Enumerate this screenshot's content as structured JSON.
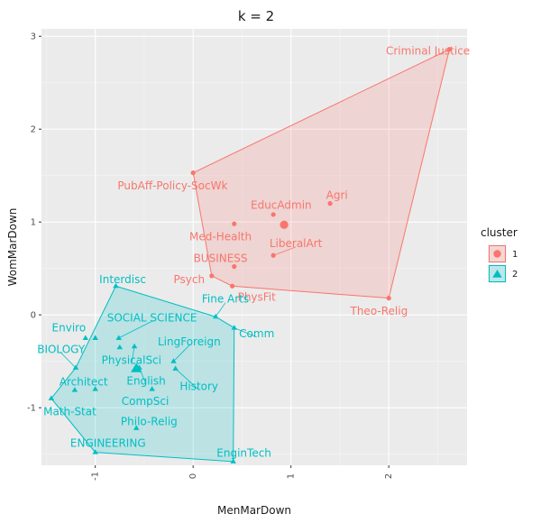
{
  "chart_data": {
    "type": "scatter",
    "title": "k = 2",
    "xlabel": "MenMarDown",
    "ylabel": "WomMarDown",
    "xlim": [
      -1.55,
      2.8
    ],
    "ylim": [
      -1.62,
      3.08
    ],
    "x_ticks": [
      -1,
      0,
      1,
      2
    ],
    "x_tick_labels": [
      "-1",
      "0",
      "1",
      "2"
    ],
    "y_ticks": [
      -1,
      0,
      1,
      2,
      3
    ],
    "y_tick_labels": [
      "-1",
      "0",
      "1",
      "2",
      "3"
    ],
    "grid": true,
    "legend": {
      "title": "cluster",
      "position": "right",
      "entries": [
        "1",
        "2"
      ]
    },
    "colors": {
      "1": "#f8766d",
      "2": "#00bfc4"
    },
    "series": [
      {
        "name": "1",
        "shape": "circle",
        "centroid": [
          0.93,
          0.97
        ],
        "hull": [
          "Criminal Justice",
          "Theo-Relig",
          "PhysFit",
          "Psych",
          "PubAff-Policy-SocWk"
        ],
        "points": [
          {
            "label": "Criminal Justice",
            "x": 2.62,
            "y": 2.86,
            "lx": 2.4,
            "ly": 2.84
          },
          {
            "label": "PubAff-Policy-SocWk",
            "x": 0.0,
            "y": 1.53,
            "lx": -0.21,
            "ly": 1.39
          },
          {
            "label": "Agri",
            "x": 1.4,
            "y": 1.2,
            "lx": 1.47,
            "ly": 1.29
          },
          {
            "label": "EducAdmin",
            "x": 0.82,
            "y": 1.08,
            "lx": 0.9,
            "ly": 1.18
          },
          {
            "label": "Med-Health",
            "x": 0.42,
            "y": 0.98,
            "lx": 0.28,
            "ly": 0.84
          },
          {
            "label": "LiberalArt",
            "x": 0.82,
            "y": 0.64,
            "lx": 1.05,
            "ly": 0.77,
            "line": true
          },
          {
            "label": "BUSINESS",
            "x": 0.42,
            "y": 0.52,
            "lx": 0.28,
            "ly": 0.61
          },
          {
            "label": "Psych",
            "x": 0.19,
            "y": 0.42,
            "lx": -0.04,
            "ly": 0.38
          },
          {
            "label": "PhysFit",
            "x": 0.4,
            "y": 0.31,
            "lx": 0.65,
            "ly": 0.19
          },
          {
            "label": "Theo-Relig",
            "x": 2.0,
            "y": 0.18,
            "lx": 1.9,
            "ly": 0.04
          }
        ]
      },
      {
        "name": "2",
        "shape": "triangle",
        "centroid": [
          -0.58,
          -0.58
        ],
        "hull": [
          "Interdisc",
          "Fine Arts",
          "Comm",
          "EnginTech",
          "ENGINEERING",
          "Math-Stat",
          "BIOLOGY"
        ],
        "points": [
          {
            "label": "Interdisc",
            "x": -0.79,
            "y": 0.31,
            "lx": -0.72,
            "ly": 0.38
          },
          {
            "label": "Fine Arts",
            "x": 0.23,
            "y": -0.02,
            "lx": 0.33,
            "ly": 0.17,
            "line": true
          },
          {
            "label": "SOCIAL SCIENCE",
            "x": -0.76,
            "y": -0.25,
            "lx": -0.42,
            "ly": -0.03,
            "line": true
          },
          {
            "label": "Enviro",
            "x": -1.0,
            "y": -0.25,
            "lx": -1.27,
            "ly": -0.14
          },
          {
            "label": "Comm",
            "x": 0.42,
            "y": -0.14,
            "lx": 0.65,
            "ly": -0.2,
            "line": true
          },
          {
            "label": "BIOLOGY",
            "x": -1.2,
            "y": -0.57,
            "lx": -1.35,
            "ly": -0.37,
            "line": true
          },
          {
            "label": "LingForeign",
            "x": -0.2,
            "y": -0.5,
            "lx": -0.04,
            "ly": -0.29,
            "line": true
          },
          {
            "label": "PhysicalSci",
            "x": -0.6,
            "y": -0.34,
            "lx": -0.63,
            "ly": -0.49,
            "line": true
          },
          {
            "label": "Architect",
            "x": -1.21,
            "y": -0.81,
            "lx": -1.12,
            "ly": -0.72
          },
          {
            "label": "English",
            "x": -0.55,
            "y": -0.57,
            "lx": -0.48,
            "ly": -0.71,
            "line": true
          },
          {
            "label": "History",
            "x": -0.18,
            "y": -0.58,
            "lx": 0.06,
            "ly": -0.77,
            "line": true
          },
          {
            "label": "CompSci",
            "x": -0.42,
            "y": -0.8,
            "lx": -0.49,
            "ly": -0.93
          },
          {
            "label": "Math-Stat",
            "x": -1.45,
            "y": -0.9,
            "lx": -1.26,
            "ly": -1.04
          },
          {
            "label": "Philo-Relig",
            "x": -0.58,
            "y": -1.22,
            "lx": -0.45,
            "ly": -1.15
          },
          {
            "label": "ENGINEERING",
            "x": -1.0,
            "y": -1.48,
            "lx": -0.87,
            "ly": -1.38
          },
          {
            "label": "EnginTech",
            "x": 0.41,
            "y": -1.58,
            "lx": 0.52,
            "ly": -1.49
          },
          {
            "label": "",
            "x": -1.0,
            "y": -0.8
          },
          {
            "label": "",
            "x": -1.1,
            "y": -0.25
          },
          {
            "label": "",
            "x": -0.75,
            "y": -0.35
          }
        ]
      }
    ]
  }
}
